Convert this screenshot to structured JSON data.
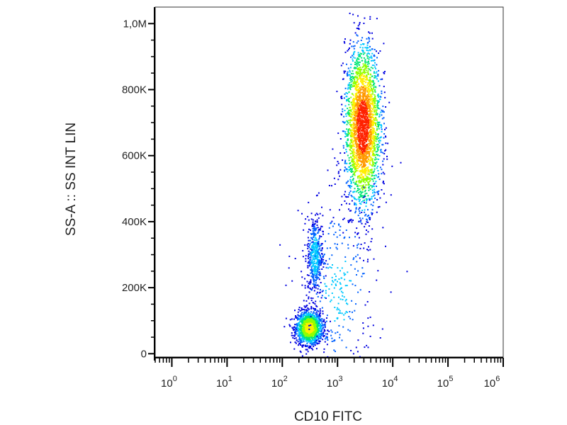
{
  "chart_data": {
    "type": "scatter",
    "plot_style": "density-colored flow cytometry dot plot",
    "xlabel": "CD10 FITC",
    "ylabel": "SS-A :: SS INT LIN",
    "x_scale": "log",
    "x_range": [
      0.5,
      1000000
    ],
    "y_scale": "linear",
    "y_range": [
      -10000,
      1050000
    ],
    "x_ticks": [
      {
        "value": 1,
        "base": "10",
        "exp": "0"
      },
      {
        "value": 10,
        "base": "10",
        "exp": "1"
      },
      {
        "value": 100,
        "base": "10",
        "exp": "2"
      },
      {
        "value": 1000,
        "base": "10",
        "exp": "3"
      },
      {
        "value": 10000,
        "base": "10",
        "exp": "4"
      },
      {
        "value": 100000,
        "base": "10",
        "exp": "5"
      },
      {
        "value": 1000000,
        "base": "10",
        "exp": "6"
      }
    ],
    "y_ticks": [
      {
        "value": 0,
        "label": "0"
      },
      {
        "value": 200000,
        "label": "200K"
      },
      {
        "value": 400000,
        "label": "400K"
      },
      {
        "value": 600000,
        "label": "600K"
      },
      {
        "value": 800000,
        "label": "800K"
      },
      {
        "value": 1000000,
        "label": "1,0M"
      }
    ],
    "populations": [
      {
        "x_center": 300,
        "x_spread_log": 0.12,
        "y_center": 80000,
        "y_spread": 25000,
        "count": 1400,
        "peak_color": "#ff2a00"
      },
      {
        "x_center": 380,
        "x_spread_log": 0.07,
        "y_center": 300000,
        "y_spread": 60000,
        "count": 450,
        "peak_color": "#00ff40"
      },
      {
        "x_center": 2800,
        "x_spread_log": 0.16,
        "y_center": 690000,
        "y_spread": 120000,
        "count": 2600,
        "peak_color": "#90ff00"
      },
      {
        "x_center": 1000,
        "x_spread_log": 0.35,
        "y_center": 200000,
        "y_spread": 150000,
        "count": 350,
        "peak_color": "#0000ff"
      }
    ],
    "grid": false,
    "legend": "none"
  }
}
